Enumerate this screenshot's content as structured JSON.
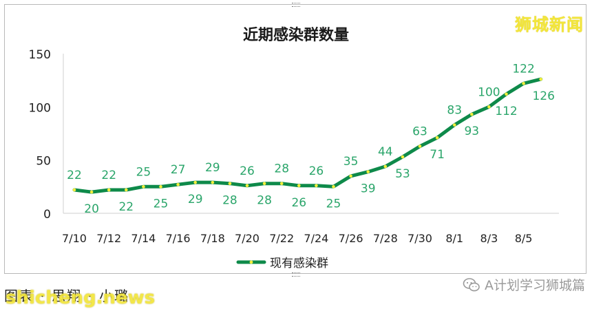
{
  "chart_data": {
    "type": "line",
    "title": "近期感染群数量",
    "categories": [
      "7/10",
      "7/11",
      "7/12",
      "7/13",
      "7/14",
      "7/15",
      "7/16",
      "7/17",
      "7/18",
      "7/19",
      "7/20",
      "7/21",
      "7/22",
      "7/23",
      "7/24",
      "7/25",
      "7/26",
      "7/27",
      "7/28",
      "7/29",
      "7/30",
      "7/31",
      "8/1",
      "8/2",
      "8/3",
      "8/4",
      "8/5",
      "8/6"
    ],
    "x_tick_labels": [
      "7/10",
      "7/12",
      "7/14",
      "7/16",
      "7/18",
      "7/20",
      "7/22",
      "7/24",
      "7/26",
      "7/28",
      "7/30",
      "8/1",
      "8/3",
      "8/5"
    ],
    "series": [
      {
        "name": "现有感染群",
        "values": [
          22,
          20,
          22,
          22,
          25,
          25,
          27,
          29,
          29,
          28,
          26,
          28,
          28,
          26,
          26,
          25,
          35,
          39,
          44,
          53,
          63,
          71,
          83,
          93,
          100,
          112,
          122,
          126
        ]
      }
    ],
    "ylim": [
      0,
      150
    ],
    "yticks": [
      0,
      50,
      100,
      150
    ],
    "grid": false,
    "legend": "bottom-center",
    "line_color": "#0e8a4a",
    "marker_color": "#f2ee3c",
    "label_color": "#2aa56a"
  },
  "watermark_top": "狮城新闻",
  "credit": "图表 · 思翔 · 小璐",
  "site_watermark": "shicheng.news",
  "wechat_account": "A计划学习狮城篇"
}
